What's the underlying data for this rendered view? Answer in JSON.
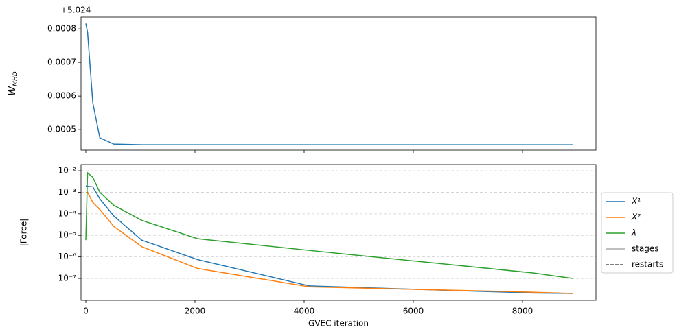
{
  "chart_data": [
    {
      "type": "line",
      "offset_text": "+5.024",
      "ylabel": "W",
      "ylabel_sub": "MHD",
      "x": [
        0,
        32,
        128,
        256,
        512,
        1024,
        2048,
        4096,
        8192,
        8920
      ],
      "xlim": [
        -88,
        9346
      ],
      "xticks": [
        0,
        2000,
        4000,
        6000,
        8000
      ],
      "show_xticklabels": false,
      "ylim": [
        0.000439,
        0.000835
      ],
      "yticks": [
        0.0005,
        0.0006,
        0.0007,
        0.0008
      ],
      "series": [
        {
          "name": "W_MHD",
          "color": "#1f77b4",
          "values": [
            0.000816,
            0.00079,
            0.00058,
            0.000476,
            0.000457,
            0.000455,
            0.000455,
            0.000455,
            0.000455,
            0.000455
          ]
        }
      ],
      "grid": false
    },
    {
      "type": "line",
      "xlabel": "GVEC iteration",
      "ylabel": "|Force|",
      "x": [
        0,
        32,
        128,
        256,
        512,
        1024,
        2048,
        4096,
        8192,
        8920
      ],
      "xlim": [
        -88,
        9346
      ],
      "xticks": [
        0,
        2000,
        4000,
        6000,
        8000
      ],
      "show_xticklabels": true,
      "log_y": true,
      "ylim": [
        9.6e-09,
        0.0194
      ],
      "yticks": [
        {
          "value": 0.01,
          "label": "10⁻²"
        },
        {
          "value": 0.001,
          "label": "10⁻³"
        },
        {
          "value": 0.0001,
          "label": "10⁻⁴"
        },
        {
          "value": 1e-05,
          "label": "10⁻⁵"
        },
        {
          "value": 1e-06,
          "label": "10⁻⁶"
        },
        {
          "value": 1e-07,
          "label": "10⁻⁷"
        }
      ],
      "grid": true,
      "legend": "outside right",
      "series": [
        {
          "name": "X¹",
          "color": "#1f77b4",
          "values": [
            0.002,
            0.0019,
            0.0018,
            0.0005,
            8e-05,
            6e-06,
            7.5e-07,
            4.5e-08,
            2.1e-08,
            2e-08
          ]
        },
        {
          "name": "X²",
          "color": "#ff7f0e",
          "values": [
            0.001,
            0.001,
            0.00034,
            0.00016,
            2.6e-05,
            3e-06,
            2.9e-07,
            4.1e-08,
            2.3e-08,
            2e-08
          ]
        },
        {
          "name": "λ",
          "color": "#2ca02c",
          "values": [
            6e-06,
            0.008,
            0.005,
            0.001,
            0.00025,
            5e-05,
            7e-06,
            2e-06,
            1.8e-07,
            1e-07
          ]
        }
      ],
      "legend_extra": [
        {
          "name": "stages",
          "color": "#aaaaaa",
          "dash": false
        },
        {
          "name": "restarts",
          "color": "#555555",
          "dash": true
        }
      ]
    }
  ]
}
